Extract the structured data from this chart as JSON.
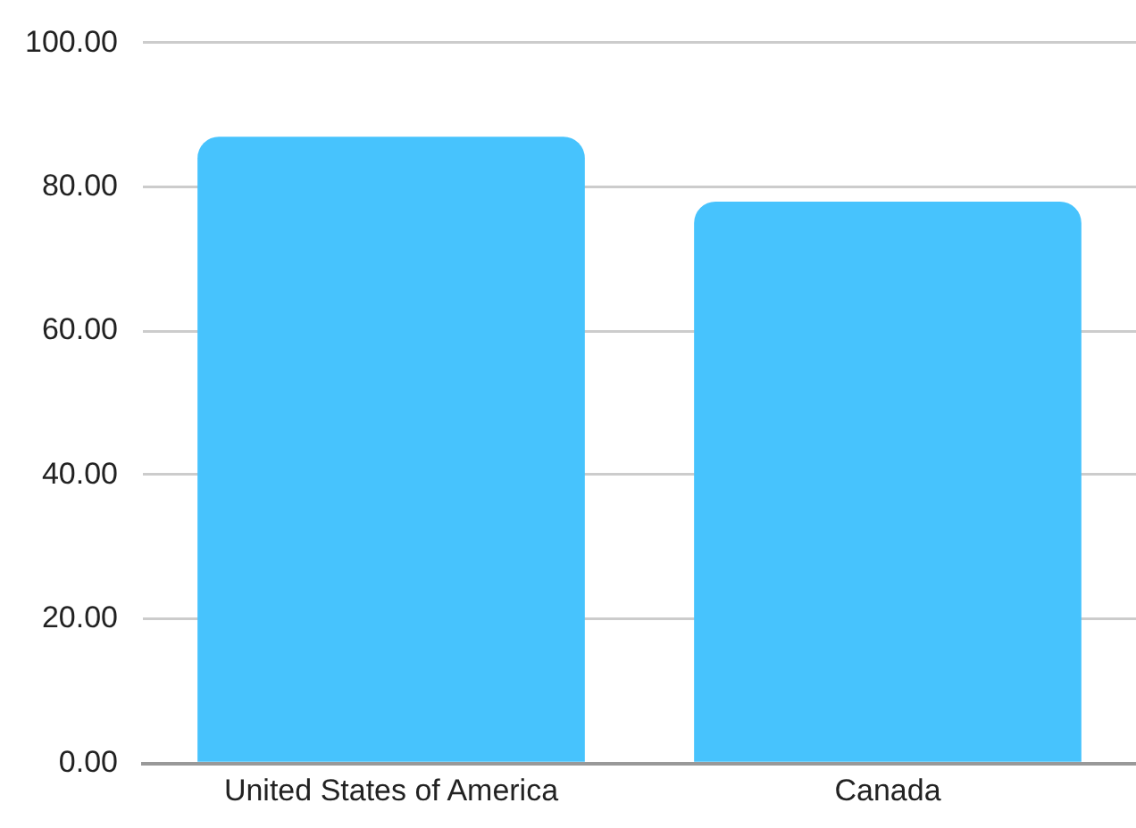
{
  "chart_data": {
    "type": "bar",
    "categories": [
      "United States of America",
      "Canada"
    ],
    "values": [
      87,
      78
    ],
    "color": "#47c3fd",
    "ylim": [
      0,
      100
    ],
    "yticks": [
      {
        "value": 0,
        "label": "0.00"
      },
      {
        "value": 20,
        "label": "20.00"
      },
      {
        "value": 40,
        "label": "40.00"
      },
      {
        "value": 60,
        "label": "60.00"
      },
      {
        "value": 80,
        "label": "80.00"
      },
      {
        "value": 100,
        "label": "100.00"
      }
    ],
    "grid": "y"
  }
}
